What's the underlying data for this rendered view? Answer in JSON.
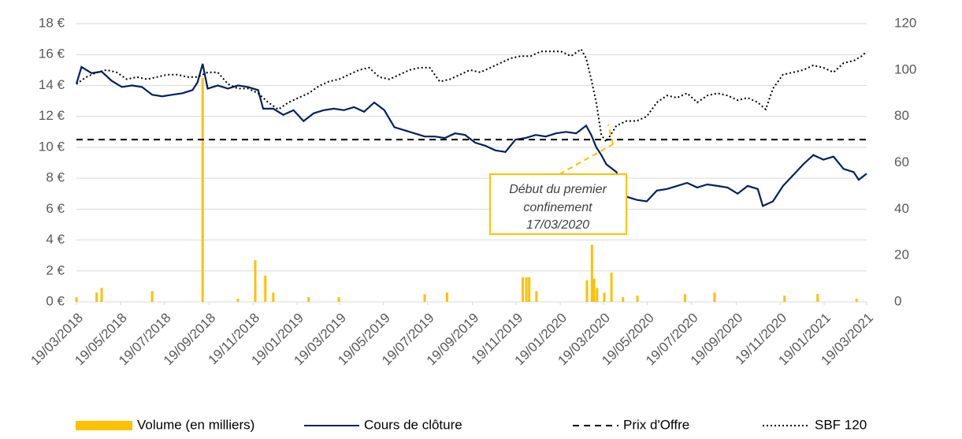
{
  "chart_data": {
    "type": "line",
    "xlim": [
      "19/03/2018",
      "19/03/2021"
    ],
    "xticks": [
      "19/03/2018",
      "19/05/2018",
      "19/07/2018",
      "19/09/2018",
      "19/11/2018",
      "19/01/2019",
      "19/03/2019",
      "19/05/2019",
      "19/07/2019",
      "19/09/2019",
      "19/11/2019",
      "19/01/2020",
      "19/03/2020",
      "19/05/2020",
      "19/07/2020",
      "19/09/2020",
      "19/11/2020",
      "19/01/2021",
      "19/03/2021"
    ],
    "ylim": [
      0,
      18
    ],
    "yticks": [
      {
        "value": 0,
        "label": "0 €"
      },
      {
        "value": 2,
        "label": "2 €"
      },
      {
        "value": 4,
        "label": "4 €"
      },
      {
        "value": 6,
        "label": "6 €"
      },
      {
        "value": 8,
        "label": "8 €"
      },
      {
        "value": 10,
        "label": "10 €"
      },
      {
        "value": 12,
        "label": "12 €"
      },
      {
        "value": 14,
        "label": "14 €"
      },
      {
        "value": 16,
        "label": "16 €"
      },
      {
        "value": 18,
        "label": "18 €"
      }
    ],
    "y2lim": [
      0,
      120
    ],
    "y2ticks": [
      0,
      20,
      40,
      60,
      80,
      100,
      120
    ],
    "grid": true,
    "legend": "bottom",
    "annotation": {
      "lines": [
        "Début du premier",
        "confinement",
        "17/03/2020"
      ],
      "color": "#FFC000"
    },
    "series": [
      {
        "name": "Volume (en milliers)",
        "type": "bar",
        "color": "#FFC000",
        "x": [
          "19/03/2018",
          "16/04/2018",
          "23/04/2018",
          "02/07/2018",
          "10/09/2018",
          "29/10/2018",
          "22/11/2018",
          "06/12/2018",
          "17/12/2018",
          "04/02/2019",
          "18/03/2019",
          "15/07/2019",
          "15/08/2019",
          "28/11/2019",
          "03/12/2019",
          "07/12/2019",
          "17/12/2019",
          "25/02/2020",
          "03/03/2020",
          "06/03/2020",
          "10/03/2020",
          "20/03/2020",
          "30/03/2020",
          "15/04/2020",
          "05/05/2020",
          "10/07/2020",
          "20/08/2020",
          "25/11/2020",
          "10/01/2021",
          "05/03/2021"
        ],
        "values": [
          0.3,
          0.6,
          0.9,
          0.7,
          14.5,
          0.2,
          2.7,
          1.7,
          0.6,
          0.3,
          0.3,
          0.5,
          0.6,
          1.6,
          1.6,
          1.6,
          0.7,
          1.4,
          3.7,
          1.5,
          0.9,
          0.6,
          1.9,
          0.3,
          0.4,
          0.5,
          0.6,
          0.4,
          0.5,
          0.2
        ]
      },
      {
        "name": "Cours de clôture",
        "type": "line",
        "style": "solid",
        "color": "#002060",
        "x": [
          "19/03/2018",
          "26/03/2018",
          "09/04/2018",
          "23/04/2018",
          "07/05/2018",
          "21/05/2018",
          "04/06/2018",
          "18/06/2018",
          "02/07/2018",
          "16/07/2018",
          "30/07/2018",
          "13/08/2018",
          "27/08/2018",
          "03/09/2018",
          "10/09/2018",
          "17/09/2018",
          "01/10/2018",
          "15/10/2018",
          "29/10/2018",
          "12/11/2018",
          "26/11/2018",
          "03/12/2018",
          "17/12/2018",
          "31/12/2018",
          "14/01/2019",
          "28/01/2019",
          "11/02/2019",
          "25/02/2019",
          "11/03/2019",
          "25/03/2019",
          "08/04/2019",
          "22/04/2019",
          "06/05/2019",
          "20/05/2019",
          "03/06/2019",
          "17/06/2019",
          "01/07/2019",
          "15/07/2019",
          "29/07/2019",
          "12/08/2019",
          "26/08/2019",
          "09/09/2019",
          "23/09/2019",
          "07/10/2019",
          "21/10/2019",
          "04/11/2019",
          "18/11/2019",
          "02/12/2019",
          "16/12/2019",
          "30/12/2019",
          "13/01/2020",
          "27/01/2020",
          "10/02/2020",
          "24/02/2020",
          "02/03/2020",
          "09/03/2020",
          "16/03/2020",
          "23/03/2020",
          "06/04/2020",
          "20/04/2020",
          "04/05/2020",
          "18/05/2020",
          "01/06/2020",
          "15/06/2020",
          "29/06/2020",
          "13/07/2020",
          "27/07/2020",
          "10/08/2020",
          "24/08/2020",
          "07/09/2020",
          "21/09/2020",
          "05/10/2020",
          "19/10/2020",
          "26/10/2020",
          "09/11/2020",
          "23/11/2020",
          "07/12/2020",
          "21/12/2020",
          "04/01/2021",
          "18/01/2021",
          "01/02/2021",
          "15/02/2021",
          "01/03/2021",
          "08/03/2021",
          "19/03/2021"
        ],
        "values": [
          14.1,
          15.2,
          14.8,
          14.9,
          14.3,
          13.9,
          14.0,
          13.9,
          13.4,
          13.3,
          13.4,
          13.5,
          13.7,
          14.2,
          15.4,
          13.8,
          14.0,
          13.8,
          14.0,
          13.9,
          13.7,
          12.5,
          12.5,
          12.1,
          12.4,
          11.7,
          12.2,
          12.4,
          12.5,
          12.4,
          12.6,
          12.3,
          12.9,
          12.4,
          11.3,
          11.1,
          10.9,
          10.7,
          10.7,
          10.6,
          10.9,
          10.8,
          10.3,
          10.1,
          9.8,
          9.7,
          10.5,
          10.6,
          10.8,
          10.7,
          10.9,
          11.0,
          10.9,
          11.4,
          10.8,
          10.0,
          9.5,
          8.9,
          8.4,
          6.8,
          6.6,
          6.5,
          7.2,
          7.3,
          7.5,
          7.7,
          7.4,
          7.6,
          7.5,
          7.4,
          7.0,
          7.5,
          7.3,
          6.2,
          6.5,
          7.5,
          8.2,
          8.9,
          9.5,
          9.2,
          9.4,
          8.6,
          8.4,
          7.9,
          8.3
        ]
      },
      {
        "name": "Prix d'Offre",
        "type": "line",
        "style": "dashed",
        "color": "#000000",
        "x": [
          "19/03/2018",
          "19/03/2021"
        ],
        "values": [
          10.5,
          10.5
        ]
      },
      {
        "name": "SBF 120",
        "type": "line",
        "style": "dotted",
        "color": "#000000",
        "axis": "y2",
        "x": [
          "19/03/2018",
          "02/04/2018",
          "16/04/2018",
          "30/04/2018",
          "14/05/2018",
          "28/05/2018",
          "11/06/2018",
          "25/06/2018",
          "09/07/2018",
          "23/07/2018",
          "06/08/2018",
          "20/08/2018",
          "03/09/2018",
          "17/09/2018",
          "01/10/2018",
          "15/10/2018",
          "29/10/2018",
          "12/11/2018",
          "26/11/2018",
          "10/12/2018",
          "24/12/2018",
          "07/01/2019",
          "21/01/2019",
          "04/02/2019",
          "18/02/2019",
          "04/03/2019",
          "18/03/2019",
          "01/04/2019",
          "15/04/2019",
          "29/04/2019",
          "13/05/2019",
          "27/05/2019",
          "10/06/2019",
          "24/06/2019",
          "08/07/2019",
          "22/07/2019",
          "05/08/2019",
          "19/08/2019",
          "02/09/2019",
          "16/09/2019",
          "30/09/2019",
          "14/10/2019",
          "28/10/2019",
          "11/11/2019",
          "25/11/2019",
          "09/12/2019",
          "23/12/2019",
          "06/01/2020",
          "20/01/2020",
          "03/02/2020",
          "17/02/2020",
          "24/02/2020",
          "02/03/2020",
          "09/03/2020",
          "16/03/2020",
          "23/03/2020",
          "06/04/2020",
          "20/04/2020",
          "04/05/2020",
          "18/05/2020",
          "01/06/2020",
          "15/06/2020",
          "29/06/2020",
          "13/07/2020",
          "27/07/2020",
          "10/08/2020",
          "24/08/2020",
          "07/09/2020",
          "21/09/2020",
          "05/10/2020",
          "19/10/2020",
          "30/10/2020",
          "09/11/2020",
          "23/11/2020",
          "07/12/2020",
          "21/12/2020",
          "04/01/2021",
          "18/01/2021",
          "01/02/2021",
          "15/02/2021",
          "01/03/2021",
          "12/03/2021",
          "19/03/2021"
        ],
        "values": [
          94,
          97,
          99,
          100,
          99,
          96,
          97,
          96,
          97,
          98,
          98,
          97,
          97,
          99,
          99,
          94,
          92,
          92,
          90,
          86,
          83,
          86,
          88,
          90,
          93,
          95,
          96,
          98,
          100,
          101,
          97,
          96,
          98,
          100,
          101,
          101,
          95,
          96,
          98,
          100,
          99,
          101,
          103,
          105,
          106,
          106,
          108,
          108,
          108,
          106,
          109,
          105,
          96,
          86,
          72,
          69,
          76,
          78,
          78,
          80,
          86,
          89,
          88,
          90,
          86,
          89,
          90,
          89,
          87,
          88,
          86,
          83,
          92,
          98,
          99,
          100,
          102,
          101,
          99,
          103,
          104,
          106,
          108
        ]
      }
    ]
  }
}
